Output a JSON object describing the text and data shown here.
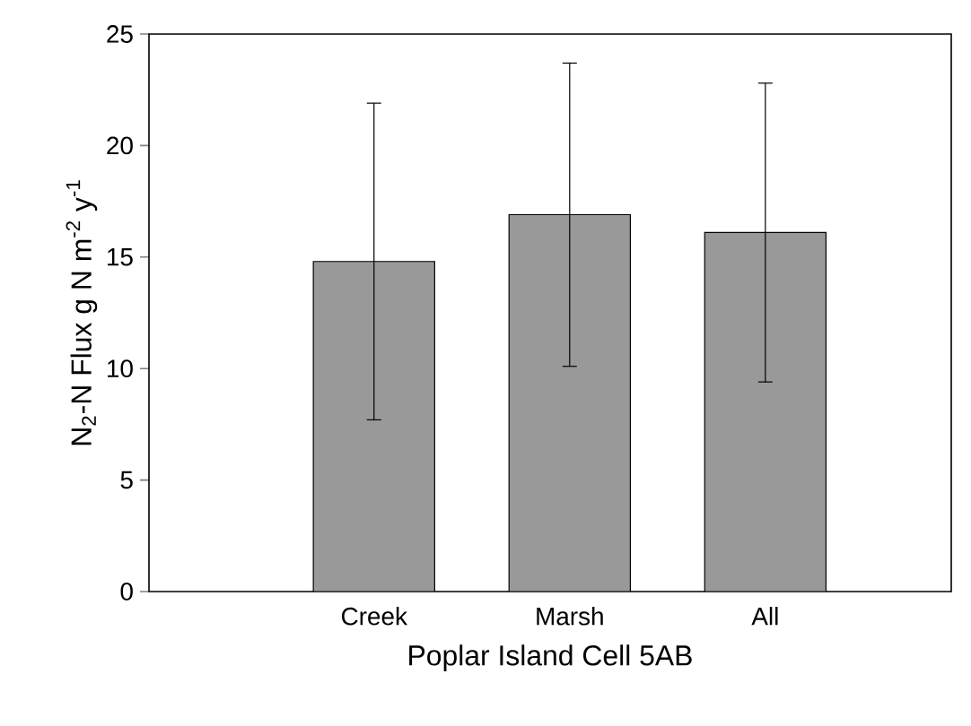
{
  "chart_data": {
    "type": "bar",
    "categories": [
      "Creek",
      "Marsh",
      "All"
    ],
    "values": [
      14.8,
      16.9,
      16.1
    ],
    "errors": [
      7.1,
      6.8,
      6.7
    ],
    "color": "#999999",
    "xlabel": "Poplar Island Cell 5AB",
    "ylabel": "N$_{2}$-N Flux  g N m$^{-2}$ y$^{-1}$",
    "ylim": [
      0,
      25
    ],
    "yticks": [
      0,
      5,
      10,
      15,
      20,
      25
    ],
    "grid": false
  }
}
